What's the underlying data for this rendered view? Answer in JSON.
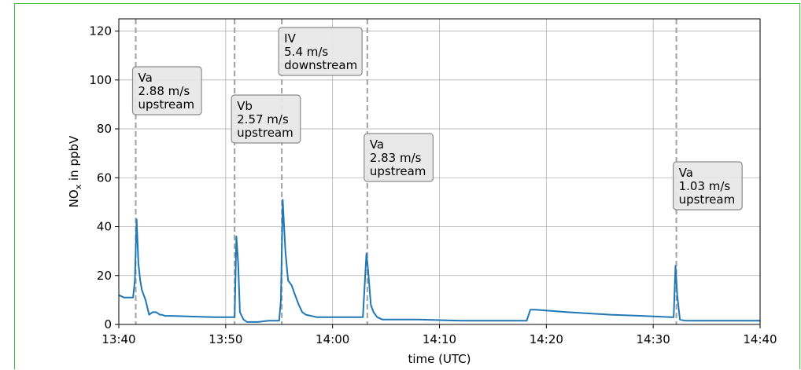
{
  "chart_data": {
    "type": "line",
    "xlabel": "time (UTC)",
    "ylabel_main": "NO",
    "ylabel_sub": "x",
    "ylabel_rest": " in ppbV",
    "ylim": [
      0,
      125
    ],
    "yticks": [
      0,
      20,
      40,
      60,
      80,
      100,
      120
    ],
    "xlim_minutes": [
      13.667,
      14.667
    ],
    "xticks": [
      {
        "t": "13:40",
        "label": "13:40"
      },
      {
        "t": "13:50",
        "label": "13:50"
      },
      {
        "t": "14:00",
        "label": "14:00"
      },
      {
        "t": "14:10",
        "label": "14:10"
      },
      {
        "t": "14:20",
        "label": "14:20"
      },
      {
        "t": "14:30",
        "label": "14:30"
      },
      {
        "t": "14:40",
        "label": "14:40"
      }
    ],
    "grid": true,
    "series": [
      {
        "color": "#1f77b4",
        "x": [
          "13:40:00",
          "13:40:30",
          "13:41:00",
          "13:41:20",
          "13:41:30",
          "13:41:40",
          "13:41:50",
          "13:42:00",
          "13:42:10",
          "13:42:20",
          "13:42:30",
          "13:42:50",
          "13:43:10",
          "13:43:30",
          "13:43:50",
          "13:44:00",
          "13:44:20",
          "13:45:00",
          "13:47:00",
          "13:49:00",
          "13:50:30",
          "13:50:50",
          "13:51:00",
          "13:51:10",
          "13:51:20",
          "13:51:40",
          "13:52:00",
          "13:52:30",
          "13:53:00",
          "13:54:00",
          "13:55:00",
          "13:55:10",
          "13:55:20",
          "13:55:35",
          "13:55:50",
          "13:56:10",
          "13:56:30",
          "13:56:50",
          "13:57:10",
          "13:57:30",
          "13:58:00",
          "13:58:30",
          "13:59:30",
          "14:00:30",
          "14:02:30",
          "14:02:50",
          "14:03:10",
          "14:03:20",
          "14:03:35",
          "14:03:50",
          "14:04:10",
          "14:04:40",
          "14:05:30",
          "14:08:00",
          "14:12:00",
          "14:15:00",
          "14:17:00",
          "14:18:10",
          "14:18:30",
          "14:19:00",
          "14:22:00",
          "14:26:00",
          "14:29:00",
          "14:31:40",
          "14:31:55",
          "14:32:05",
          "14:32:15",
          "14:32:30",
          "14:33:00",
          "14:35:00",
          "14:38:00",
          "14:40:00"
        ],
        "y": [
          12,
          11,
          11,
          11,
          18,
          43,
          25,
          18,
          14,
          12,
          10,
          4,
          5,
          5,
          4,
          4,
          3.5,
          3.5,
          3.2,
          3,
          3,
          3,
          36,
          25,
          5,
          2,
          1,
          1,
          1,
          1.5,
          1.5,
          10,
          51,
          30,
          18,
          16,
          12,
          8,
          5,
          4,
          3.5,
          3,
          3,
          3,
          3,
          3,
          29,
          22,
          8,
          5,
          3,
          2,
          2,
          2,
          1.5,
          1.5,
          1.5,
          1.5,
          6,
          6,
          5,
          4,
          3.5,
          3,
          3,
          24,
          12,
          2,
          1.5,
          1.5,
          1.5,
          1.5
        ]
      }
    ],
    "vlines": [
      "13:41:35",
      "13:50:50",
      "13:55:15",
      "14:03:15",
      "14:32:10"
    ],
    "annotations": [
      {
        "lines": [
          "Va",
          "2.88 m/s",
          "upstream"
        ]
      },
      {
        "lines": [
          "Vb",
          "2.57 m/s",
          "upstream"
        ]
      },
      {
        "lines": [
          "IV",
          "5.4 m/s",
          "downstream"
        ]
      },
      {
        "lines": [
          "Va",
          "2.83 m/s",
          "upstream"
        ]
      },
      {
        "lines": [
          "Va",
          "1.03 m/s",
          "upstream"
        ]
      }
    ]
  }
}
